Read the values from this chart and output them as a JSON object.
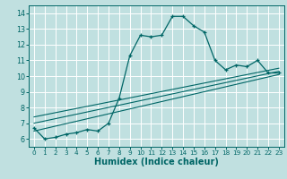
{
  "title": "",
  "xlabel": "Humidex (Indice chaleur)",
  "bg_color": "#c0e0e0",
  "line_color": "#006666",
  "grid_color": "#ffffff",
  "xlim": [
    -0.5,
    23.5
  ],
  "ylim": [
    5.5,
    14.5
  ],
  "xticks": [
    0,
    1,
    2,
    3,
    4,
    5,
    6,
    7,
    8,
    9,
    10,
    11,
    12,
    13,
    14,
    15,
    16,
    17,
    18,
    19,
    20,
    21,
    22,
    23
  ],
  "yticks": [
    6,
    7,
    8,
    9,
    10,
    11,
    12,
    13,
    14
  ],
  "line1_x": [
    0,
    1,
    2,
    3,
    4,
    5,
    6,
    7,
    8,
    9,
    10,
    11,
    12,
    13,
    14,
    15,
    16,
    17,
    18,
    19,
    20,
    21,
    22,
    23
  ],
  "line1_y": [
    6.7,
    6.0,
    6.1,
    6.3,
    6.4,
    6.6,
    6.5,
    7.0,
    8.6,
    11.3,
    12.6,
    12.5,
    12.6,
    13.8,
    13.8,
    13.2,
    12.8,
    11.0,
    10.4,
    10.7,
    10.6,
    11.0,
    10.2,
    10.2
  ],
  "line2_x": [
    0,
    23
  ],
  "line2_y": [
    6.5,
    10.1
  ],
  "line3_x": [
    0,
    23
  ],
  "line3_y": [
    7.0,
    10.3
  ],
  "line4_x": [
    0,
    23
  ],
  "line4_y": [
    7.4,
    10.5
  ],
  "xlabel_fontsize": 7,
  "tick_fontsize": 6
}
